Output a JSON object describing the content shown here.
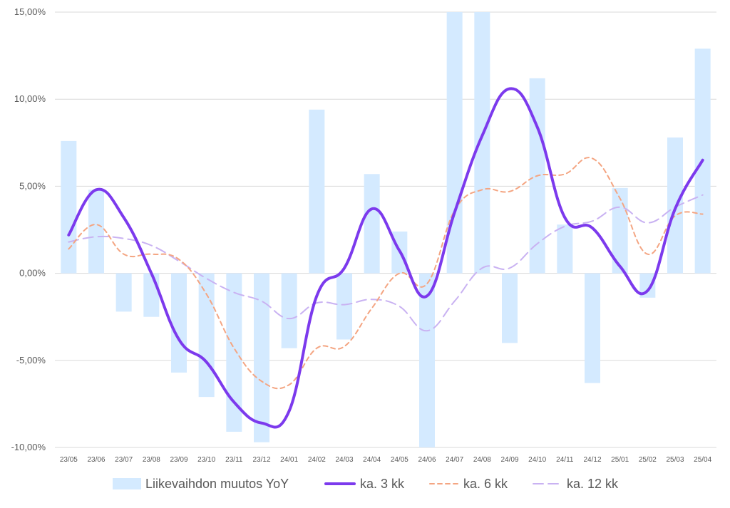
{
  "chart_data": {
    "type": "bar",
    "title": "",
    "xlabel": "",
    "ylabel": "",
    "ylim": [
      -10,
      15
    ],
    "y_ticks": [
      "-10,00%",
      "-5,00%",
      "0,00%",
      "5,00%",
      "10,00%",
      "15,00%"
    ],
    "y_tick_values": [
      -10,
      -5,
      0,
      5,
      10,
      15
    ],
    "grid": "horizontal",
    "legend_position": "bottom",
    "categories": [
      "23/05",
      "23/06",
      "23/07",
      "23/08",
      "23/09",
      "23/10",
      "23/11",
      "23/12",
      "24/01",
      "24/02",
      "24/03",
      "24/04",
      "24/05",
      "24/06",
      "24/07",
      "24/08",
      "24/09",
      "24/10",
      "24/11",
      "24/12",
      "25/01",
      "25/02",
      "25/03",
      "25/04"
    ],
    "series": [
      {
        "name": "Liikevaihdon muutos YoY",
        "type": "bar",
        "color": "#d4eaff",
        "values": [
          7.6,
          4.8,
          -2.2,
          -2.5,
          -5.7,
          -7.1,
          -9.1,
          -9.7,
          -4.3,
          9.4,
          -3.8,
          5.7,
          2.4,
          -10.0,
          15.0,
          15.0,
          -4.0,
          11.2,
          2.8,
          -6.3,
          4.9,
          -1.4,
          7.8,
          12.9
        ]
      },
      {
        "name": "ka. 3 kk",
        "type": "line",
        "style": "solid",
        "color": "#7c3aed",
        "values": [
          2.2,
          4.8,
          3.2,
          0.0,
          -3.8,
          -5.1,
          -7.4,
          -8.6,
          -7.9,
          -1.3,
          0.3,
          3.7,
          1.3,
          -1.3,
          3.5,
          7.9,
          10.6,
          8.4,
          3.2,
          2.6,
          0.4,
          -1.0,
          3.7,
          6.5
        ]
      },
      {
        "name": "ka. 6 kk",
        "type": "line",
        "style": "dashed",
        "color": "#f4a582",
        "values": [
          1.4,
          2.8,
          1.1,
          1.1,
          0.8,
          -1.2,
          -4.3,
          -6.2,
          -6.4,
          -4.3,
          -4.2,
          -2.0,
          0.0,
          -0.6,
          3.6,
          4.8,
          4.7,
          5.6,
          5.7,
          6.6,
          4.3,
          1.1,
          3.3,
          3.4
        ]
      },
      {
        "name": "ka. 12 kk",
        "type": "line",
        "style": "dashed",
        "color": "#c9b2f2",
        "values": [
          1.8,
          2.1,
          2.0,
          1.6,
          0.7,
          -0.3,
          -1.1,
          -1.6,
          -2.6,
          -1.7,
          -1.8,
          -1.5,
          -1.9,
          -3.3,
          -1.6,
          0.3,
          0.3,
          1.7,
          2.7,
          3.0,
          3.8,
          2.9,
          3.8,
          4.5
        ]
      }
    ]
  }
}
